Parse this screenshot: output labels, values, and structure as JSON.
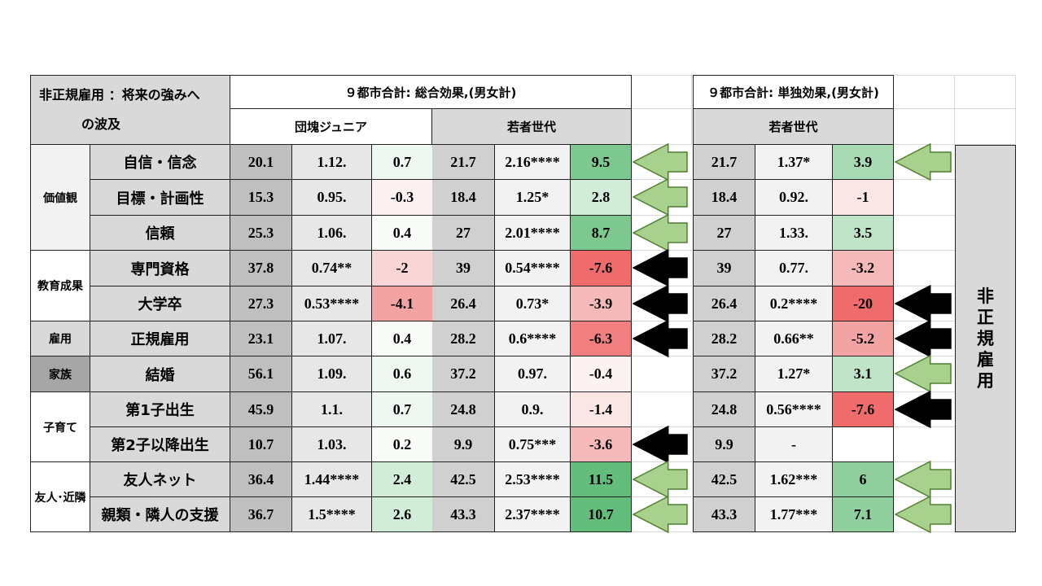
{
  "title_line1": "非正規雇用 ：将来の強みへ",
  "title_line2": "の波及",
  "total_effect_header": "９都市合計: 総合効果,(男女計)",
  "single_effect_header": "９都市合計: 単独効果,(男女計)",
  "cohort_dankai": "団塊ジュニア",
  "cohort_young": "若者世代",
  "cohort_young_single": "若者世代",
  "side_label": [
    "非",
    "正",
    "規",
    "雇",
    "用"
  ],
  "groups": [
    {
      "label": "価値観"
    },
    {
      "label": "教育成果"
    },
    {
      "label": "雇用"
    },
    {
      "label": "家族"
    },
    {
      "label": "子育て"
    },
    {
      "label": "友人･近隣"
    }
  ],
  "rows": [
    {
      "label": "自信・信念",
      "d": [
        "20.1",
        "1.12.",
        "0.7"
      ],
      "y": [
        "21.7",
        "2.16****",
        "9.5"
      ],
      "s": [
        "21.7",
        "1.37*",
        "3.9"
      ],
      "arrow_total": "green",
      "arrow_single": "green"
    },
    {
      "label": "目標・計画性",
      "d": [
        "15.3",
        "0.95.",
        "-0.3"
      ],
      "y": [
        "18.4",
        "1.25*",
        "2.8"
      ],
      "s": [
        "18.4",
        "0.92.",
        "-1"
      ],
      "arrow_total": "green",
      "arrow_single": ""
    },
    {
      "label": "信頼",
      "d": [
        "25.3",
        "1.06.",
        "0.4"
      ],
      "y": [
        "27",
        "2.01****",
        "8.7"
      ],
      "s": [
        "27",
        "1.33.",
        "3.5"
      ],
      "arrow_total": "green",
      "arrow_single": ""
    },
    {
      "label": "専門資格",
      "d": [
        "37.8",
        "0.74**",
        "-2"
      ],
      "y": [
        "39",
        "0.54****",
        "-7.6"
      ],
      "s": [
        "39",
        "0.77.",
        "-3.2"
      ],
      "arrow_total": "black",
      "arrow_single": ""
    },
    {
      "label": "大学卒",
      "d": [
        "27.3",
        "0.53****",
        "-4.1"
      ],
      "y": [
        "26.4",
        "0.73*",
        "-3.9"
      ],
      "s": [
        "26.4",
        "0.2****",
        "-20"
      ],
      "arrow_total": "black",
      "arrow_single": "black"
    },
    {
      "label": "正規雇用",
      "d": [
        "23.1",
        "1.07.",
        "0.4"
      ],
      "y": [
        "28.2",
        "0.6****",
        "-6.3"
      ],
      "s": [
        "28.2",
        "0.66**",
        "-5.2"
      ],
      "arrow_total": "black",
      "arrow_single": "black"
    },
    {
      "label": "結婚",
      "d": [
        "56.1",
        "1.09.",
        "0.6"
      ],
      "y": [
        "37.2",
        "0.97.",
        "-0.4"
      ],
      "s": [
        "37.2",
        "1.27*",
        "3.1"
      ],
      "arrow_total": "",
      "arrow_single": "green"
    },
    {
      "label": "第1子出生",
      "d": [
        "45.9",
        "1.1.",
        "0.7"
      ],
      "y": [
        "24.8",
        "0.9.",
        "-1.4"
      ],
      "s": [
        "24.8",
        "0.56****",
        "-7.6"
      ],
      "arrow_total": "",
      "arrow_single": "black"
    },
    {
      "label": "第2子以降出生",
      "d": [
        "10.7",
        "1.03.",
        "0.2"
      ],
      "y": [
        "9.9",
        "0.75***",
        "-3.6"
      ],
      "s": [
        "9.9",
        "-",
        ""
      ],
      "arrow_total": "black",
      "arrow_single": ""
    },
    {
      "label": "友人ネット",
      "d": [
        "36.4",
        "1.44****",
        "2.4"
      ],
      "y": [
        "42.5",
        "2.53****",
        "11.5"
      ],
      "s": [
        "42.5",
        "1.62***",
        "6"
      ],
      "arrow_total": "green",
      "arrow_single": "green"
    },
    {
      "label": "親類・隣人の支援",
      "d": [
        "36.7",
        "1.5****",
        "2.6"
      ],
      "y": [
        "43.3",
        "2.37****",
        "10.7"
      ],
      "s": [
        "43.3",
        "1.77***",
        "7.1"
      ],
      "arrow_total": "green",
      "arrow_single": "green"
    }
  ]
}
